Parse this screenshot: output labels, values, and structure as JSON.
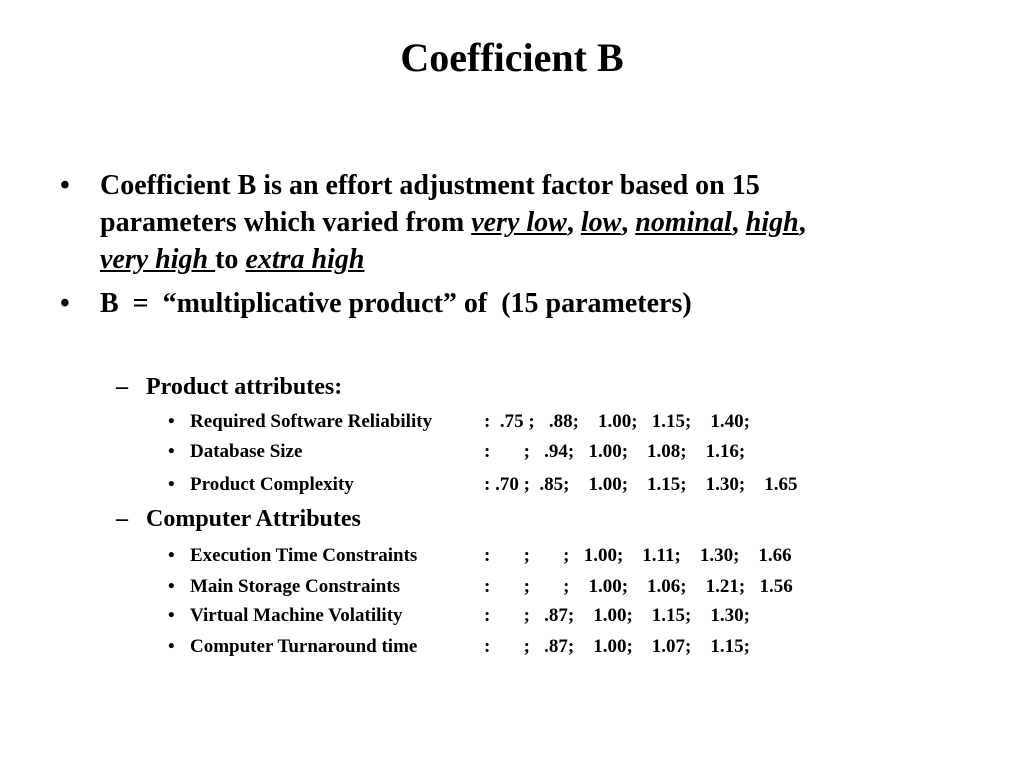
{
  "header": {
    "title": "Coefficient B"
  },
  "bullets": [
    {
      "parts": [
        "Coefficient B is an effort adjustment factor based on 15",
        "parameters which varied from ",
        "very low",
        ", ",
        "low",
        ", ",
        "nominal",
        ", ",
        "high",
        ",",
        "very high ",
        "to ",
        "extra high"
      ]
    },
    {
      "text": "B  =  “multiplicative product” of  (15 parameters)"
    }
  ],
  "groups": [
    {
      "heading": "Product attributes:",
      "items": [
        {
          "label": "Required Software Reliability",
          "values": ":  .75 ;   .88;    1.00;   1.15;    1.40;"
        },
        {
          "label": "Database Size",
          "values": ":       ;   .94;   1.00;    1.08;    1.16;"
        },
        {
          "label": "Product Complexity",
          "values": ": .70 ;  .85;    1.00;    1.15;    1.30;    1.65"
        }
      ]
    },
    {
      "heading": "Computer Attributes",
      "items": [
        {
          "label": "Execution Time Constraints",
          "values": ":       ;       ;   1.00;    1.11;    1.30;    1.66"
        },
        {
          "label": "Main Storage Constraints",
          "values": ":       ;       ;    1.00;    1.06;    1.21;   1.56"
        },
        {
          "label": "Virtual Machine Volatility",
          "values": ":       ;   .87;    1.00;    1.15;    1.30;"
        },
        {
          "label": "Computer Turnaround time",
          "values": ":       ;   .87;    1.00;    1.07;    1.15;"
        }
      ]
    }
  ]
}
